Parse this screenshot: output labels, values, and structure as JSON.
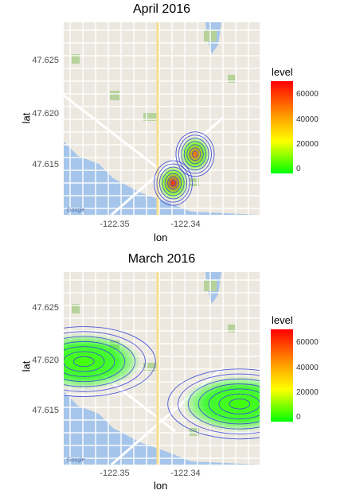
{
  "chart_data": [
    {
      "type": "heatmap",
      "title": "April 2016",
      "xlabel": "lon",
      "ylabel": "lat",
      "x_ticks": [
        "-122.35",
        "-122.34"
      ],
      "y_ticks": [
        "47.625",
        "47.620",
        "47.615"
      ],
      "xlim": [
        -122.3595,
        -122.3255
      ],
      "ylim": [
        47.6095,
        47.6295
      ],
      "legend_title": "level",
      "legend_ticks": [
        "60000",
        "40000",
        "20000",
        "0"
      ],
      "legend_range": [
        0,
        72000
      ],
      "legend_colors": [
        "#00ff00",
        "#ffff00",
        "#ff0000"
      ],
      "map_attribution": "Google",
      "hotspots": [
        {
          "lon": -122.3405,
          "lat": 47.6128,
          "level": 70000
        },
        {
          "lon": -122.3367,
          "lat": 47.6158,
          "level": 60000
        }
      ]
    },
    {
      "type": "heatmap",
      "title": "March 2016",
      "xlabel": "lon",
      "ylabel": "lat",
      "x_ticks": [
        "-122.35",
        "-122.34"
      ],
      "y_ticks": [
        "47.625",
        "47.620",
        "47.615"
      ],
      "xlim": [
        -122.3595,
        -122.3255
      ],
      "ylim": [
        47.6095,
        47.6295
      ],
      "legend_title": "level",
      "legend_ticks": [
        "60000",
        "40000",
        "20000",
        "0"
      ],
      "legend_range": [
        0,
        72000
      ],
      "legend_colors": [
        "#00ff00",
        "#ffff00",
        "#ff0000"
      ],
      "map_attribution": "Google",
      "hotspots": [
        {
          "lon": -122.356,
          "lat": 47.6202,
          "level": 9000
        },
        {
          "lon": -122.329,
          "lat": 47.6158,
          "level": 9000
        }
      ]
    }
  ]
}
